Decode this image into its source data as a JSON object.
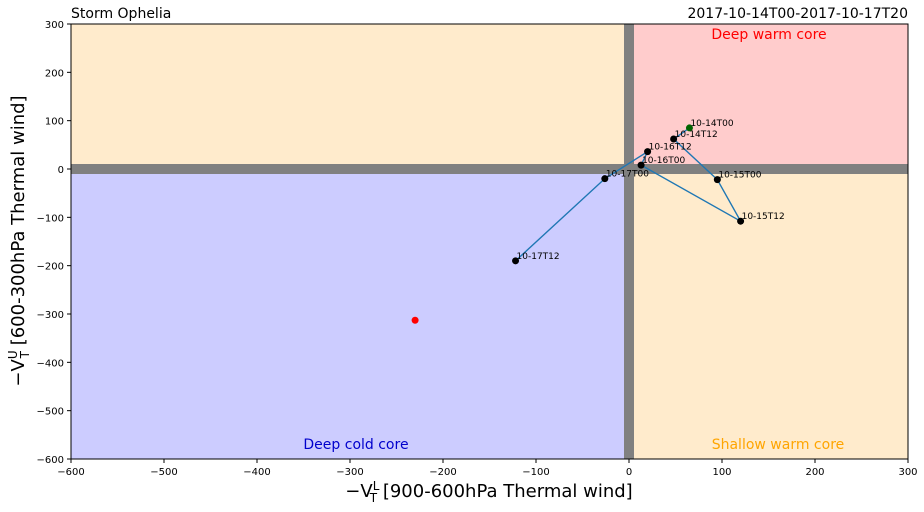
{
  "chart_data": {
    "type": "scatter",
    "title_left": "Storm Ophelia",
    "title_right": "2017-10-14T00-2017-10-17T20",
    "xlabel_prefix": "−V",
    "xlabel_sup": "L",
    "xlabel_sub": "T",
    "xlabel_suffix": " [900-600hPa Thermal wind]",
    "ylabel_prefix": "−V",
    "ylabel_sup": "U",
    "ylabel_sub": "T",
    "ylabel_suffix": " [600-300hPa Thermal wind]",
    "xlim": [
      -600,
      300
    ],
    "ylim": [
      -600,
      300
    ],
    "xticks": [
      -600,
      -500,
      -400,
      -300,
      -200,
      -100,
      0,
      100,
      200,
      300
    ],
    "yticks": [
      -600,
      -500,
      -400,
      -300,
      -200,
      -100,
      0,
      100,
      200,
      300
    ],
    "xtick_labels": [
      "−600",
      "−500",
      "−400",
      "−300",
      "−200",
      "−100",
      "0",
      "100",
      "200",
      "300"
    ],
    "ytick_labels": [
      "−600",
      "−500",
      "−400",
      "−300",
      "−200",
      "−100",
      "0",
      "100",
      "200",
      "300"
    ],
    "regions": [
      {
        "label": "Deep warm core",
        "color": "#ff0000",
        "fill": "#ffcccc"
      },
      {
        "label": "Deep cold core",
        "color": "#0000cc",
        "fill": "#ccccff"
      },
      {
        "label": "Shallow warm core",
        "color": "#ffa500",
        "fill": "#ffebcc"
      }
    ],
    "upper_left_fill": "#ffebcc",
    "zero_band_color": "#808080",
    "track_color": "#1f77b4",
    "points": [
      {
        "label": "10-14T00",
        "x": 65,
        "y": 85,
        "color": "#006400"
      },
      {
        "label": "10-14T12",
        "x": 48,
        "y": 62,
        "color": "#000000"
      },
      {
        "label": "10-15T00",
        "x": 95,
        "y": -22,
        "color": "#000000"
      },
      {
        "label": "10-15T12",
        "x": 120,
        "y": -108,
        "color": "#000000"
      },
      {
        "label": "10-16T00",
        "x": 13,
        "y": 8,
        "color": "#000000"
      },
      {
        "label": "10-16T12",
        "x": 20,
        "y": 36,
        "color": "#000000"
      },
      {
        "label": "10-17T00",
        "x": -26,
        "y": -20,
        "color": "#000000"
      },
      {
        "label": "10-17T12",
        "x": -122,
        "y": -190,
        "color": "#000000"
      }
    ],
    "extra_point": {
      "x": -230,
      "y": -313,
      "color": "#ff0000"
    }
  }
}
